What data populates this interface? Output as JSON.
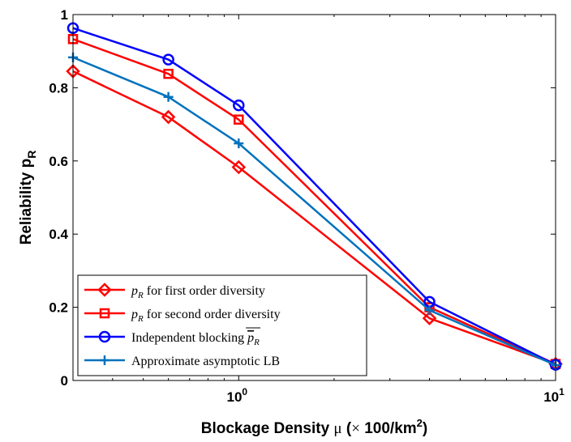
{
  "chart_data": {
    "type": "line",
    "xlabel": "Blockage Density μ (× 100/km²)",
    "xlabel_parts": {
      "main": "Blockage Density ",
      "mu": "μ",
      "open": " (",
      "times": "×",
      "unit": " 100/km",
      "sup": "2",
      "close": ")"
    },
    "ylabel": "Reliability p_R",
    "ylabel_parts": {
      "main": "Reliability p",
      "sub": "R"
    },
    "xscale": "log",
    "xlim": [
      0.3,
      10
    ],
    "ylim": [
      0,
      1
    ],
    "grid": false,
    "legend_position": "bottom-left",
    "x_ticks": [
      {
        "value": 1,
        "base": "10",
        "exp": "0"
      },
      {
        "value": 10,
        "base": "10",
        "exp": "1"
      }
    ],
    "y_ticks": [
      {
        "value": 0,
        "label": "0"
      },
      {
        "value": 0.2,
        "label": "0.2"
      },
      {
        "value": 0.4,
        "label": "0.4"
      },
      {
        "value": 0.6,
        "label": "0.6"
      },
      {
        "value": 0.8,
        "label": "0.8"
      },
      {
        "value": 1,
        "label": "1"
      }
    ],
    "x": [
      0.3,
      0.6,
      1,
      4,
      10
    ],
    "series": [
      {
        "name": "p_R for first order diversity",
        "legend_parts": {
          "var": "p",
          "sub": "R",
          "rest": " for first order diversity",
          "over": ""
        },
        "marker": "diamond",
        "color": "#ff0000",
        "values": [
          0.845,
          0.72,
          0.583,
          0.17,
          0.045
        ]
      },
      {
        "name": "p_R for second order diversity",
        "legend_parts": {
          "var": "p",
          "sub": "R",
          "rest": " for second order diversity",
          "over": ""
        },
        "marker": "square",
        "color": "#ff0000",
        "values": [
          0.933,
          0.838,
          0.713,
          0.2,
          0.045
        ]
      },
      {
        "name": "Independent blocking p_R (overline)",
        "legend_parts": {
          "var": "",
          "sub": "",
          "rest": "Independent blocking ",
          "over": "p_R"
        },
        "marker": "circle",
        "color": "#0000ff",
        "values": [
          0.963,
          0.877,
          0.752,
          0.215,
          0.043
        ]
      },
      {
        "name": "Approximate asymptotic LB",
        "legend_parts": {
          "var": "",
          "sub": "",
          "rest": "Approximate asymptotic LB",
          "over": ""
        },
        "marker": "plus",
        "color": "#0072bd",
        "values": [
          0.883,
          0.775,
          0.648,
          0.192,
          0.042
        ]
      }
    ]
  }
}
